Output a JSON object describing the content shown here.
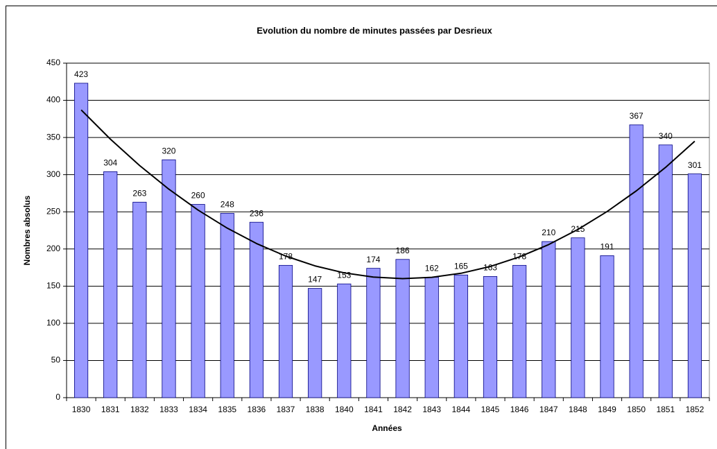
{
  "chart_data": {
    "type": "bar",
    "title": "Evolution du nombre de minutes passées par Desrieux",
    "x_label": "Années",
    "y_label": "Nombres absolus",
    "categories": [
      "1830",
      "1831",
      "1832",
      "1833",
      "1834",
      "1835",
      "1836",
      "1837",
      "1838",
      "1840",
      "1841",
      "1842",
      "1843",
      "1844",
      "1845",
      "1846",
      "1847",
      "1848",
      "1849",
      "1850",
      "1851",
      "1852"
    ],
    "values": [
      423,
      304,
      263,
      320,
      260,
      248,
      236,
      178,
      147,
      153,
      174,
      186,
      162,
      165,
      163,
      178,
      210,
      215,
      191,
      367,
      340,
      301
    ],
    "color": "#9999ff",
    "ylim": [
      0,
      450
    ],
    "yticks": [
      0,
      50,
      100,
      150,
      200,
      250,
      300,
      350,
      400,
      450
    ],
    "grid": true,
    "trendline": "polynomial",
    "trendline_order": 2
  }
}
